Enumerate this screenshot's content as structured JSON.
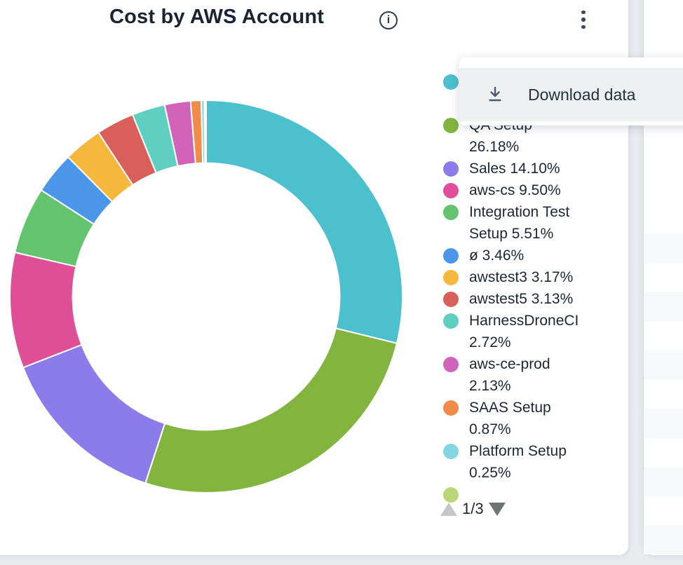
{
  "header": {
    "title": "Cost by AWS Account",
    "info_icon": "info-icon",
    "more_menu_icon": "kebab-vertical-icon"
  },
  "menu": {
    "items": [
      {
        "icon": "download-icon",
        "label": "Download data"
      }
    ]
  },
  "legend": {
    "page_indicator": "1/3",
    "items": [
      {
        "text": "",
        "color": "#4cc0cd",
        "hidden_behind_menu": true
      },
      {
        "text": "QA Setup 26.18%",
        "color": "#83b440"
      },
      {
        "text": "Sales 14.10%",
        "color": "#8b7ce9"
      },
      {
        "text": "aws-cs 9.50%",
        "color": "#de4f98"
      },
      {
        "text": "Integration Test Setup 5.51%",
        "color": "#63c36e"
      },
      {
        "text": "ø 3.46%",
        "color": "#4b96e9"
      },
      {
        "text": "awstest3 3.17%",
        "color": "#f6b83c"
      },
      {
        "text": "awstest5 3.13%",
        "color": "#d95f5a"
      },
      {
        "text": "HarnessDroneCI 2.72%",
        "color": "#5fcfc2"
      },
      {
        "text": "aws-ce-prod 2.13%",
        "color": "#d263ba"
      },
      {
        "text": "SAAS Setup 0.87%",
        "color": "#ef8c49"
      },
      {
        "text": "Platform Setup 0.25%",
        "color": "#85d6e3"
      },
      {
        "text": "",
        "color": "#b9d678"
      }
    ]
  },
  "chart_data": {
    "type": "pie",
    "variant": "donut",
    "title": "Cost by AWS Account",
    "unit": "%",
    "hole_ratio": 0.68,
    "start_angle_deg": 0,
    "direction": "clockwise",
    "legend_position": "right",
    "slices": [
      {
        "label": "",
        "value": 28.83,
        "color": "#4cc0cd"
      },
      {
        "label": "QA Setup",
        "value": 26.18,
        "color": "#83b440"
      },
      {
        "label": "Sales",
        "value": 14.1,
        "color": "#8b7ce9"
      },
      {
        "label": "aws-cs",
        "value": 9.5,
        "color": "#de4f98"
      },
      {
        "label": "Integration Test Setup",
        "value": 5.51,
        "color": "#63c36e"
      },
      {
        "label": "ø",
        "value": 3.46,
        "color": "#4b96e9"
      },
      {
        "label": "awstest3",
        "value": 3.17,
        "color": "#f6b83c"
      },
      {
        "label": "awstest5",
        "value": 3.13,
        "color": "#d95f5a"
      },
      {
        "label": "HarnessDroneCI",
        "value": 2.72,
        "color": "#5fcfc2"
      },
      {
        "label": "aws-ce-prod",
        "value": 2.13,
        "color": "#d263ba"
      },
      {
        "label": "SAAS Setup",
        "value": 0.87,
        "color": "#ef8c49"
      },
      {
        "label": "Platform Setup",
        "value": 0.25,
        "color": "#85d6e3"
      },
      {
        "label": "",
        "value": 0.1,
        "color": "#b9d678"
      },
      {
        "label": "",
        "value": 0.05,
        "color": "#a8dce8"
      }
    ]
  }
}
